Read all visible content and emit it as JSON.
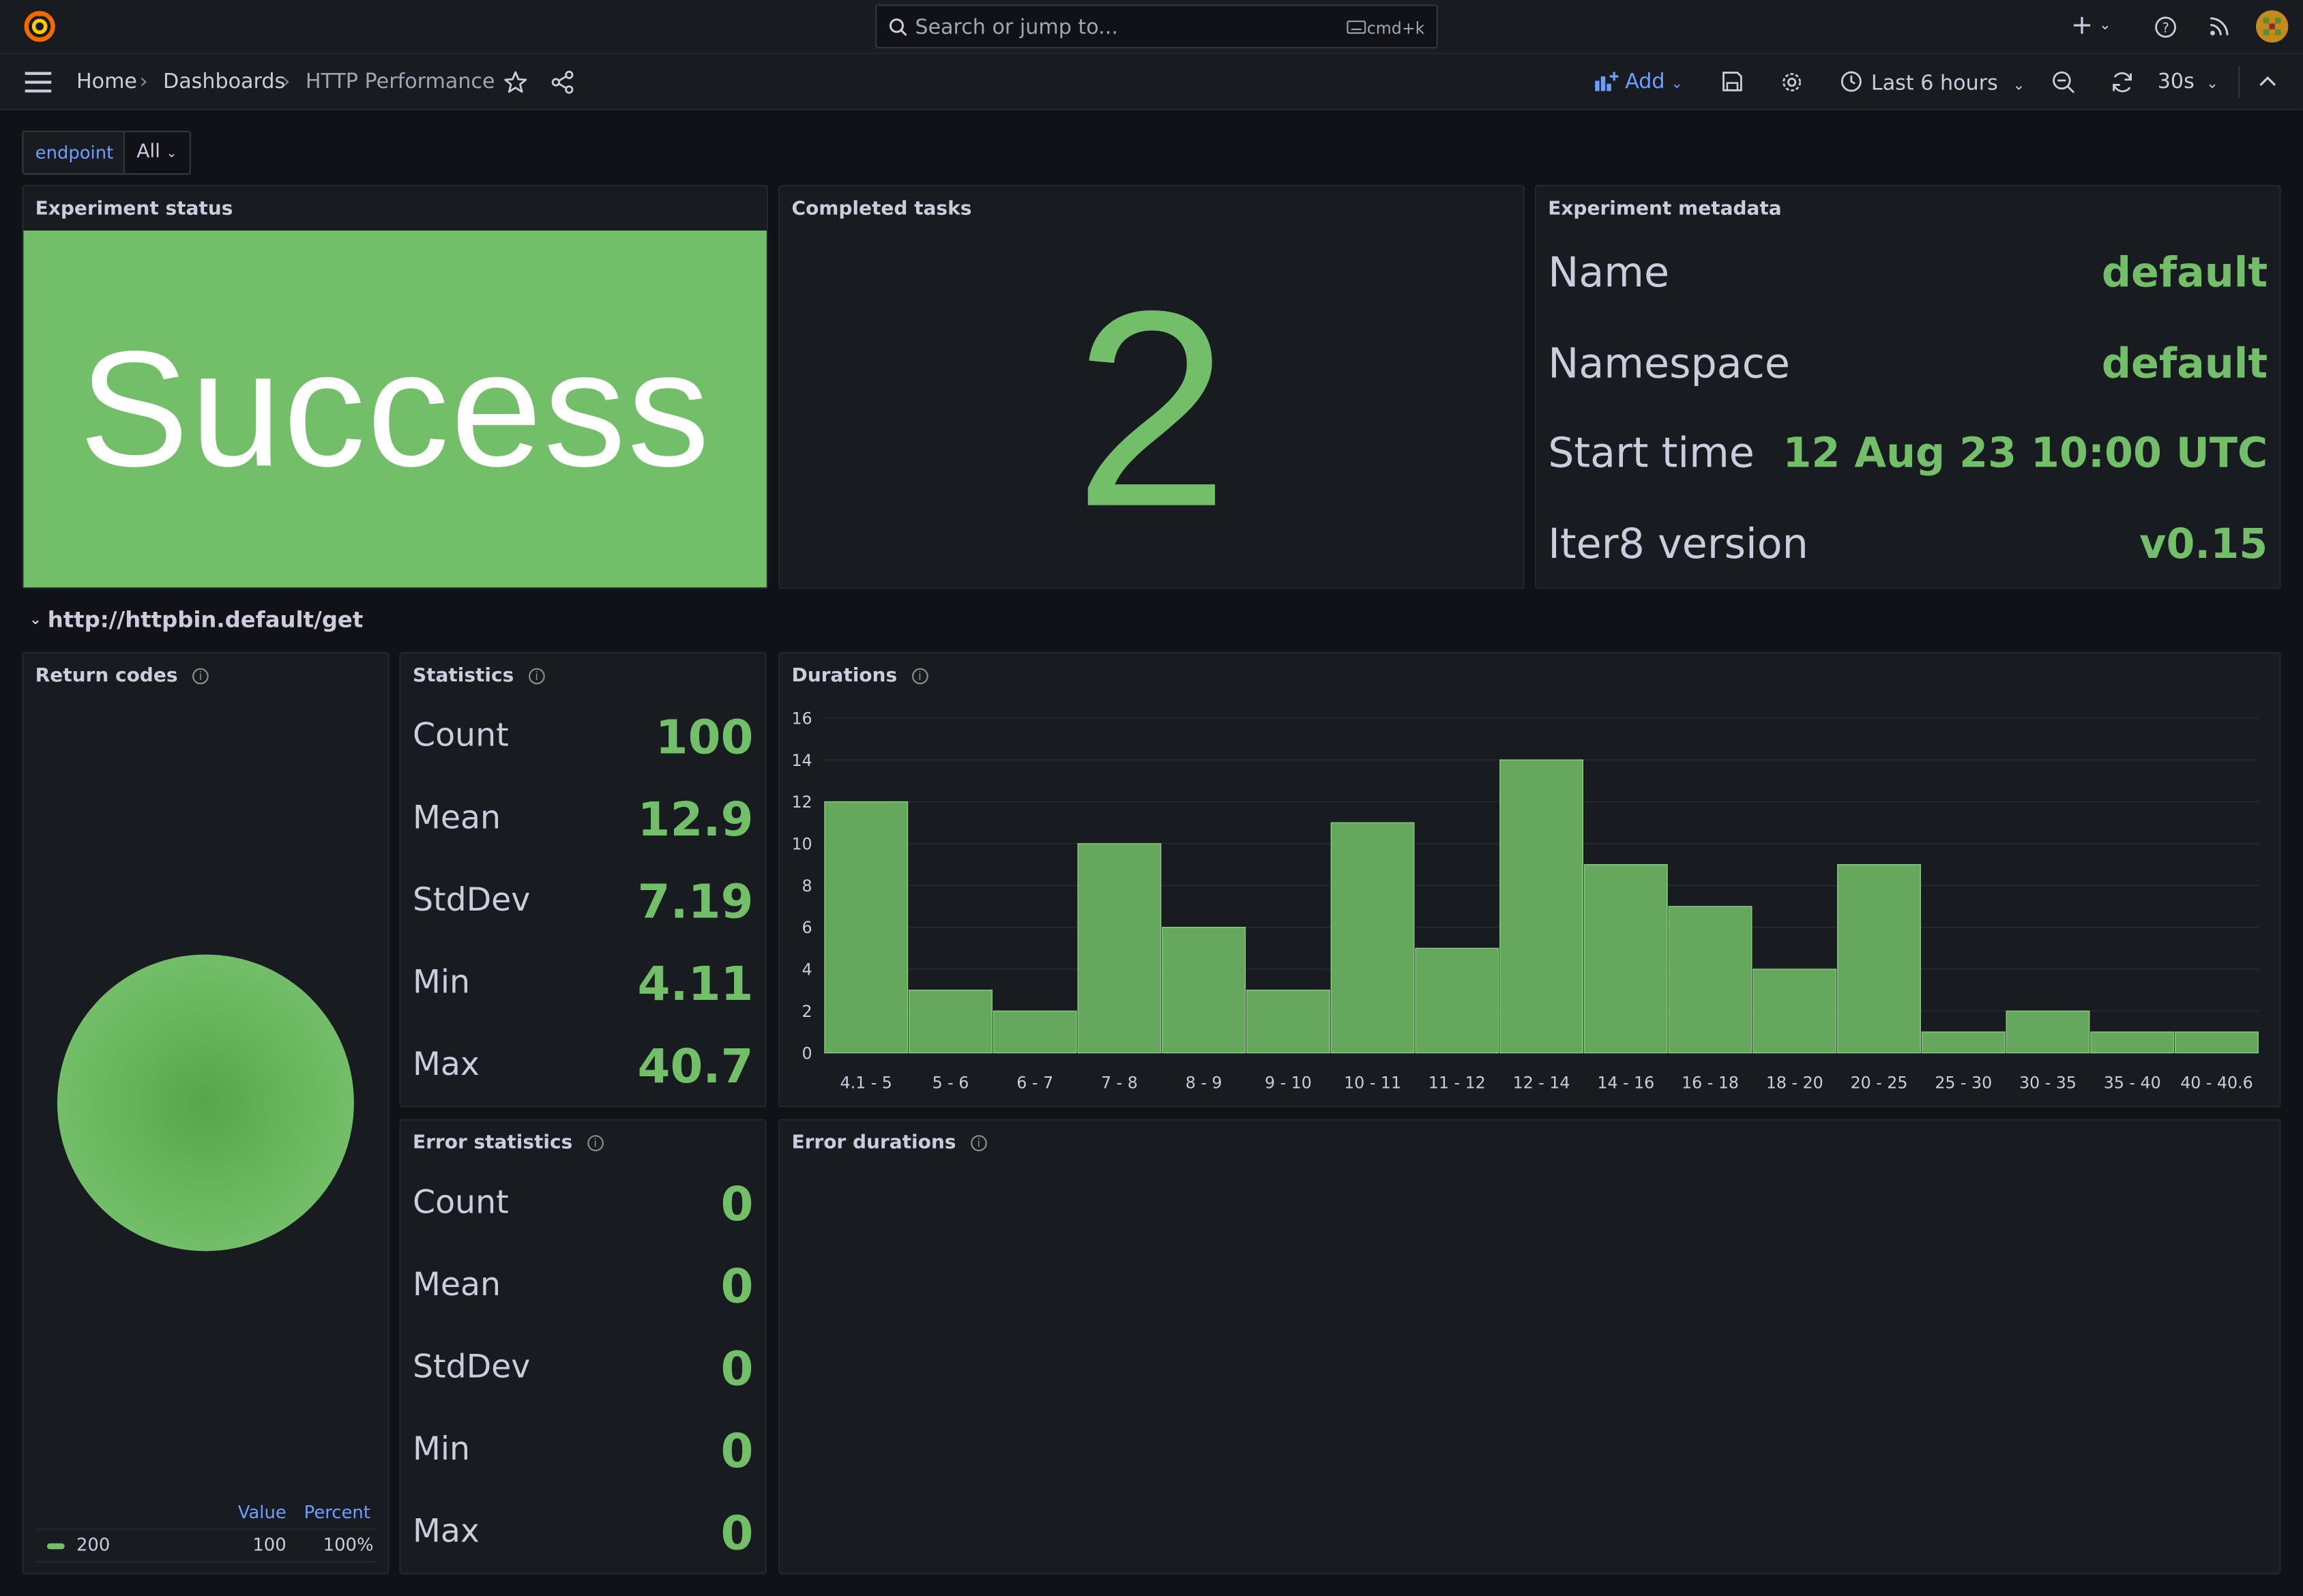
{
  "search": {
    "placeholder": "Search or jump to...",
    "shortcut": "cmd+k"
  },
  "breadcrumb": {
    "home": "Home",
    "dashboards": "Dashboards",
    "current": "HTTP Performance"
  },
  "toolbar": {
    "add_label": "Add",
    "time_range": "Last 6 hours",
    "refresh_interval": "30s"
  },
  "variables": {
    "endpoint_label": "endpoint",
    "endpoint_value": "All"
  },
  "experiment_status": {
    "title": "Experiment status",
    "value": "Success"
  },
  "completed_tasks": {
    "title": "Completed tasks",
    "value": "2"
  },
  "metadata": {
    "title": "Experiment metadata",
    "rows": [
      {
        "label": "Name",
        "value": "default"
      },
      {
        "label": "Namespace",
        "value": "default"
      },
      {
        "label": "Start time",
        "value": "12 Aug 23 10:00 UTC"
      },
      {
        "label": "Iter8 version",
        "value": "v0.15"
      }
    ]
  },
  "row_title": "http://httpbin.default/get",
  "return_codes": {
    "title": "Return codes",
    "legend_headers": {
      "value": "Value",
      "percent": "Percent"
    },
    "legend": [
      {
        "name": "200",
        "value": "100",
        "percent": "100%"
      }
    ]
  },
  "statistics": {
    "title": "Statistics",
    "rows": [
      {
        "label": "Count",
        "value": "100"
      },
      {
        "label": "Mean",
        "value": "12.9"
      },
      {
        "label": "StdDev",
        "value": "7.19"
      },
      {
        "label": "Min",
        "value": "4.11"
      },
      {
        "label": "Max",
        "value": "40.7"
      }
    ]
  },
  "error_statistics": {
    "title": "Error statistics",
    "rows": [
      {
        "label": "Count",
        "value": "0"
      },
      {
        "label": "Mean",
        "value": "0"
      },
      {
        "label": "StdDev",
        "value": "0"
      },
      {
        "label": "Min",
        "value": "0"
      },
      {
        "label": "Max",
        "value": "0"
      }
    ]
  },
  "durations": {
    "title": "Durations"
  },
  "error_durations": {
    "title": "Error durations"
  },
  "colors": {
    "accent": "#73bf69",
    "link": "#6e9fff",
    "background": "#111217",
    "panel": "#181b1f"
  },
  "chart_data": {
    "type": "bar",
    "categories": [
      "4.1 - 5",
      "5 - 6",
      "6 - 7",
      "7 - 8",
      "8 - 9",
      "9 - 10",
      "10 - 11",
      "11 - 12",
      "12 - 14",
      "14 - 16",
      "16 - 18",
      "18 - 20",
      "20 - 25",
      "25 - 30",
      "30 - 35",
      "35 - 40",
      "40 - 40.6"
    ],
    "values": [
      12,
      3,
      2,
      10,
      6,
      3,
      11,
      5,
      14,
      9,
      7,
      4,
      9,
      1,
      2,
      1,
      1
    ],
    "ylim": [
      0,
      16
    ],
    "yticks": [
      0,
      2,
      4,
      6,
      8,
      10,
      12,
      14,
      16
    ],
    "grid": true,
    "color": "#73bf69"
  }
}
